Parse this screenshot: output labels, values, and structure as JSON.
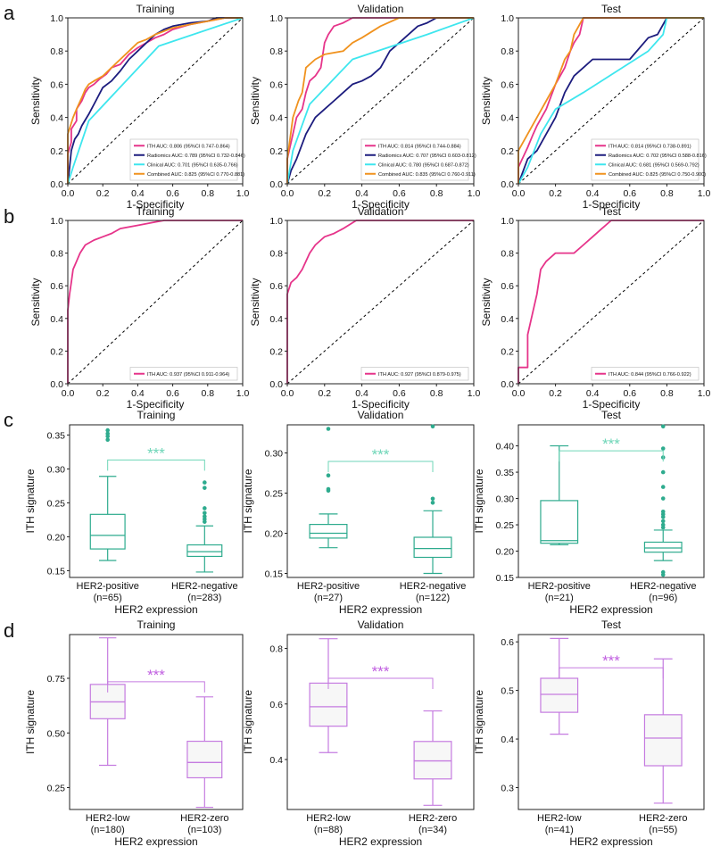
{
  "figure": {
    "panel_letters": [
      "a",
      "b",
      "c",
      "d"
    ],
    "roc_xlabel": "1-Specificity",
    "roc_ylabel": "Sensitivity",
    "box_xlabel": "HER2 expression",
    "box_ylabel": "ITH signature",
    "significance": "***"
  },
  "colors": {
    "ith": "#e6348a",
    "radiomics": "#1c1c7e",
    "clinical": "#3ee6ee",
    "combined": "#f0921e",
    "box_c": "#2eab8e",
    "box_c_star": "#6fd6b8",
    "box_d": "#c57be0",
    "box_d_star": "#c05ee0"
  },
  "chart_data": [
    {
      "id": "a1",
      "type": "line",
      "panel": "a",
      "title": "Training",
      "xlabel": "1-Specificity",
      "ylabel": "Sensitivity",
      "xlim": [
        0,
        1
      ],
      "ylim": [
        0,
        1
      ],
      "xticks": [
        "0.0",
        "0.2",
        "0.4",
        "0.6",
        "0.8",
        "1.0"
      ],
      "yticks": [
        "0.0",
        "0.2",
        "0.4",
        "0.6",
        "0.8",
        "1.0"
      ],
      "legend_position": "lower-right",
      "series": [
        {
          "name": "ITH AUC: 0.806 (95%CI 0.747-0.864)",
          "color": "#e6348a",
          "x": [
            0,
            0,
            0.02,
            0.02,
            0.05,
            0.05,
            0.08,
            0.1,
            0.12,
            0.15,
            0.18,
            0.22,
            0.25,
            0.3,
            0.35,
            0.4,
            0.45,
            0.5,
            0.55,
            0.6,
            0.7,
            0.8,
            0.9,
            1
          ],
          "y": [
            0,
            0.18,
            0.25,
            0.33,
            0.38,
            0.45,
            0.5,
            0.55,
            0.58,
            0.6,
            0.63,
            0.66,
            0.7,
            0.72,
            0.78,
            0.82,
            0.85,
            0.88,
            0.9,
            0.93,
            0.96,
            0.98,
            1,
            1
          ]
        },
        {
          "name": "Radiomics AUC: 0.789 (95%CI 0.732-0.846)",
          "color": "#1c1c7e",
          "x": [
            0,
            0.01,
            0.02,
            0.04,
            0.06,
            0.08,
            0.12,
            0.16,
            0.2,
            0.25,
            0.3,
            0.35,
            0.4,
            0.45,
            0.5,
            0.55,
            0.6,
            0.7,
            0.8,
            0.85,
            1
          ],
          "y": [
            0,
            0.1,
            0.2,
            0.27,
            0.3,
            0.35,
            0.42,
            0.5,
            0.58,
            0.62,
            0.68,
            0.75,
            0.8,
            0.85,
            0.9,
            0.93,
            0.95,
            0.97,
            0.98,
            1,
            1
          ]
        },
        {
          "name": "Clinical AUC: 0.701 (95%CI 0.635-0.766)",
          "color": "#3ee6ee",
          "x": [
            0,
            0.03,
            0.12,
            0.52,
            1
          ],
          "y": [
            0,
            0.1,
            0.38,
            0.83,
            1
          ]
        },
        {
          "name": "Combined AUC: 0.825 (95%CI 0.770-0.881)",
          "color": "#f0921e",
          "x": [
            0,
            0,
            0.03,
            0.05,
            0.08,
            0.1,
            0.12,
            0.15,
            0.2,
            0.25,
            0.3,
            0.35,
            0.4,
            0.45,
            0.5,
            0.55,
            0.6,
            0.7,
            0.8,
            0.9,
            1
          ],
          "y": [
            0,
            0.3,
            0.4,
            0.45,
            0.52,
            0.57,
            0.6,
            0.62,
            0.65,
            0.7,
            0.75,
            0.8,
            0.85,
            0.87,
            0.9,
            0.92,
            0.94,
            0.96,
            0.98,
            1,
            1
          ]
        }
      ]
    },
    {
      "id": "a2",
      "type": "line",
      "panel": "a",
      "title": "Validation",
      "xlabel": "1-Specificity",
      "ylabel": "Sensitivity",
      "xlim": [
        0,
        1
      ],
      "ylim": [
        0,
        1
      ],
      "xticks": [
        "0.0",
        "0.2",
        "0.4",
        "0.6",
        "0.8",
        "1.0"
      ],
      "yticks": [
        "0.0",
        "0.2",
        "0.4",
        "0.6",
        "0.8",
        "1.0"
      ],
      "legend_position": "lower-right",
      "series": [
        {
          "name": "ITH AUC: 0.814 (95%CI 0.744-0.884)",
          "color": "#e6348a",
          "x": [
            0,
            0,
            0.03,
            0.05,
            0.08,
            0.1,
            0.12,
            0.15,
            0.18,
            0.2,
            0.22,
            0.25,
            0.3,
            0.35,
            0.4,
            0.5,
            0.6,
            1
          ],
          "y": [
            0,
            0.15,
            0.3,
            0.4,
            0.45,
            0.55,
            0.62,
            0.65,
            0.7,
            0.85,
            0.9,
            0.95,
            0.97,
            1,
            1,
            1,
            1,
            1
          ]
        },
        {
          "name": "Radiomics AUC: 0.707 (95%CI 0.603-0.812)",
          "color": "#1c1c7e",
          "x": [
            0,
            0.02,
            0.05,
            0.1,
            0.15,
            0.2,
            0.25,
            0.3,
            0.35,
            0.4,
            0.45,
            0.5,
            0.55,
            0.6,
            0.65,
            0.7,
            0.75,
            0.8,
            1
          ],
          "y": [
            0,
            0.08,
            0.15,
            0.3,
            0.4,
            0.45,
            0.5,
            0.55,
            0.6,
            0.62,
            0.65,
            0.7,
            0.8,
            0.85,
            0.9,
            0.95,
            0.97,
            1,
            1
          ]
        },
        {
          "name": "Clinical AUC: 0.780 (95%CI 0.687-0.872)",
          "color": "#3ee6ee",
          "x": [
            0,
            0.03,
            0.12,
            0.35,
            0.75,
            1
          ],
          "y": [
            0,
            0.2,
            0.48,
            0.75,
            0.9,
            1
          ]
        },
        {
          "name": "Combined AUC: 0.835 (95%CI 0.760-0.911)",
          "color": "#f0921e",
          "x": [
            0,
            0,
            0.03,
            0.06,
            0.08,
            0.1,
            0.15,
            0.2,
            0.3,
            0.35,
            0.4,
            0.5,
            0.6,
            0.7,
            1
          ],
          "y": [
            0,
            0.15,
            0.4,
            0.5,
            0.55,
            0.7,
            0.75,
            0.78,
            0.8,
            0.85,
            0.88,
            0.95,
            1,
            1,
            1
          ]
        }
      ]
    },
    {
      "id": "a3",
      "type": "line",
      "panel": "a",
      "title": "Test",
      "xlabel": "1-Specificity",
      "ylabel": "Sensitivity",
      "xlim": [
        0,
        1
      ],
      "ylim": [
        0,
        1
      ],
      "xticks": [
        "0.0",
        "0.2",
        "0.4",
        "0.6",
        "0.8",
        "1.0"
      ],
      "yticks": [
        "0.0",
        "0.2",
        "0.4",
        "0.6",
        "0.8",
        "1.0"
      ],
      "legend_position": "lower-right",
      "series": [
        {
          "name": "ITH AUC: 0.814 (95%CI 0.738-0.891)",
          "color": "#e6348a",
          "x": [
            0,
            0,
            0.05,
            0.08,
            0.1,
            0.15,
            0.2,
            0.25,
            0.28,
            0.3,
            0.33,
            0.35,
            0.4,
            1
          ],
          "y": [
            0,
            0.1,
            0.22,
            0.3,
            0.35,
            0.45,
            0.6,
            0.7,
            0.8,
            0.85,
            0.9,
            1,
            1,
            1
          ]
        },
        {
          "name": "Radiomics AUC: 0.702 (95%CI 0.588-0.816)",
          "color": "#1c1c7e",
          "x": [
            0,
            0.05,
            0.1,
            0.15,
            0.2,
            0.25,
            0.3,
            0.35,
            0.4,
            0.5,
            0.6,
            0.7,
            0.75,
            0.8,
            1
          ],
          "y": [
            0,
            0.15,
            0.2,
            0.3,
            0.4,
            0.55,
            0.65,
            0.7,
            0.75,
            0.75,
            0.75,
            0.88,
            0.9,
            1,
            1
          ]
        },
        {
          "name": "Clinical AUC: 0.681 (95%CI 0.569-0.792)",
          "color": "#3ee6ee",
          "x": [
            0,
            0.05,
            0.12,
            0.2,
            0.35,
            0.7,
            0.78,
            0.8,
            1
          ],
          "y": [
            0,
            0.1,
            0.3,
            0.45,
            0.55,
            0.8,
            0.9,
            1,
            1
          ]
        },
        {
          "name": "Combined AUC: 0.825 (95%CI 0.750-0.900)",
          "color": "#f0921e",
          "x": [
            0,
            0,
            0.05,
            0.1,
            0.15,
            0.2,
            0.25,
            0.28,
            0.3,
            0.35,
            1
          ],
          "y": [
            0,
            0.2,
            0.3,
            0.4,
            0.5,
            0.6,
            0.75,
            0.8,
            0.9,
            1,
            1
          ]
        }
      ]
    },
    {
      "id": "b1",
      "type": "line",
      "panel": "b",
      "title": "Training",
      "xlabel": "1-Specificity",
      "ylabel": "Sensitivity",
      "xlim": [
        0,
        1
      ],
      "ylim": [
        0,
        1
      ],
      "xticks": [
        "0.0",
        "0.2",
        "0.4",
        "0.6",
        "0.8",
        "1.0"
      ],
      "yticks": [
        "0.0",
        "0.2",
        "0.4",
        "0.6",
        "0.8",
        "1.0"
      ],
      "legend_position": "lower-right",
      "series": [
        {
          "name": "ITH AUC: 0.937 (95%CI 0.911-0.964)",
          "color": "#e6348a",
          "x": [
            0,
            0,
            0.01,
            0.02,
            0.03,
            0.05,
            0.07,
            0.1,
            0.15,
            0.2,
            0.25,
            0.3,
            0.4,
            0.5,
            0.55,
            1
          ],
          "y": [
            0,
            0.45,
            0.55,
            0.62,
            0.7,
            0.75,
            0.8,
            0.85,
            0.88,
            0.9,
            0.92,
            0.95,
            0.97,
            0.99,
            1,
            1
          ]
        }
      ]
    },
    {
      "id": "b2",
      "type": "line",
      "panel": "b",
      "title": "Validation",
      "xlabel": "1-Specificity",
      "ylabel": "Sensitivity",
      "xlim": [
        0,
        1
      ],
      "ylim": [
        0,
        1
      ],
      "xticks": [
        "0.0",
        "0.2",
        "0.4",
        "0.6",
        "0.8",
        "1.0"
      ],
      "yticks": [
        "0.0",
        "0.2",
        "0.4",
        "0.6",
        "0.8",
        "1.0"
      ],
      "legend_position": "lower-right",
      "series": [
        {
          "name": "ITH AUC: 0.927 (95%CI 0.879-0.975)",
          "color": "#e6348a",
          "x": [
            0,
            0,
            0.02,
            0.05,
            0.08,
            0.1,
            0.12,
            0.15,
            0.18,
            0.2,
            0.25,
            0.3,
            0.37,
            1
          ],
          "y": [
            0,
            0.55,
            0.62,
            0.65,
            0.7,
            0.75,
            0.8,
            0.85,
            0.88,
            0.9,
            0.92,
            0.95,
            1,
            1
          ]
        }
      ]
    },
    {
      "id": "b3",
      "type": "line",
      "panel": "b",
      "title": "Test",
      "xlabel": "1-Specificity",
      "ylabel": "Sensitivity",
      "xlim": [
        0,
        1
      ],
      "ylim": [
        0,
        1
      ],
      "xticks": [
        "0.0",
        "0.2",
        "0.4",
        "0.6",
        "0.8",
        "1.0"
      ],
      "yticks": [
        "0.0",
        "0.2",
        "0.4",
        "0.6",
        "0.8",
        "1.0"
      ],
      "legend_position": "lower-right",
      "series": [
        {
          "name": "ITH AUC: 0.844 (95%CI 0.766-0.922)",
          "color": "#e6348a",
          "x": [
            0,
            0,
            0.05,
            0.05,
            0.1,
            0.12,
            0.15,
            0.2,
            0.25,
            0.3,
            0.35,
            0.4,
            0.45,
            0.5,
            1
          ],
          "y": [
            0,
            0.1,
            0.1,
            0.3,
            0.55,
            0.7,
            0.75,
            0.8,
            0.8,
            0.8,
            0.85,
            0.9,
            0.95,
            1,
            1
          ]
        }
      ]
    },
    {
      "id": "c1",
      "type": "box",
      "panel": "c",
      "title": "Training",
      "xlabel": "HER2 expression",
      "ylabel": "ITH signature",
      "ylim": [
        0.14,
        0.365
      ],
      "yticks": [
        0.15,
        0.2,
        0.25,
        0.3,
        0.35
      ],
      "groups": [
        {
          "label": "HER2-positive",
          "n": "(n=65)",
          "min": 0.165,
          "q1": 0.182,
          "median": 0.202,
          "q3": 0.233,
          "max": 0.289,
          "outliers": [
            0.343,
            0.348,
            0.352,
            0.357
          ]
        },
        {
          "label": "HER2-negative",
          "n": "(n=283)",
          "min": 0.148,
          "q1": 0.171,
          "median": 0.178,
          "q3": 0.188,
          "max": 0.216,
          "outliers": [
            0.222,
            0.226,
            0.23,
            0.235,
            0.242,
            0.272,
            0.28
          ]
        }
      ],
      "significance": "***"
    },
    {
      "id": "c2",
      "type": "box",
      "panel": "c",
      "title": "Validation",
      "xlabel": "HER2 expression",
      "ylabel": "ITH signature",
      "ylim": [
        0.145,
        0.335
      ],
      "yticks": [
        0.15,
        0.2,
        0.25,
        0.3
      ],
      "groups": [
        {
          "label": "HER2-positive",
          "n": "(n=27)",
          "min": 0.182,
          "q1": 0.194,
          "median": 0.2,
          "q3": 0.211,
          "max": 0.224,
          "outliers": [
            0.253,
            0.255,
            0.272,
            0.33
          ]
        },
        {
          "label": "HER2-negative",
          "n": "(n=122)",
          "min": 0.15,
          "q1": 0.17,
          "median": 0.181,
          "q3": 0.195,
          "max": 0.228,
          "outliers": [
            0.238,
            0.243,
            0.333
          ]
        }
      ],
      "significance": "***"
    },
    {
      "id": "c3",
      "type": "box",
      "panel": "c",
      "title": "Test",
      "xlabel": "HER2 expression",
      "ylabel": "ITH signature",
      "ylim": [
        0.15,
        0.44
      ],
      "yticks": [
        0.15,
        0.2,
        0.25,
        0.3,
        0.35,
        0.4
      ],
      "groups": [
        {
          "label": "HER2-positive",
          "n": "(n=21)",
          "min": 0.212,
          "q1": 0.215,
          "median": 0.22,
          "q3": 0.296,
          "max": 0.4,
          "outliers": []
        },
        {
          "label": "HER2-negative",
          "n": "(n=96)",
          "min": 0.182,
          "q1": 0.198,
          "median": 0.206,
          "q3": 0.217,
          "max": 0.24,
          "outliers": [
            0.155,
            0.16,
            0.245,
            0.25,
            0.257,
            0.265,
            0.27,
            0.275,
            0.3,
            0.322,
            0.35,
            0.378,
            0.395,
            0.437
          ]
        }
      ],
      "significance": "***"
    },
    {
      "id": "d1",
      "type": "box",
      "panel": "d",
      "title": "Training",
      "xlabel": "HER2 expression",
      "ylabel": "ITH signature",
      "ylim": [
        0.15,
        0.95
      ],
      "yticks": [
        0.25,
        0.5,
        0.75
      ],
      "groups": [
        {
          "label": "HER2-low",
          "n": "(n=180)",
          "min": 0.352,
          "q1": 0.565,
          "median": 0.642,
          "q3": 0.722,
          "max": 0.935,
          "outliers": []
        },
        {
          "label": "HER2-zero",
          "n": "(n=103)",
          "min": 0.16,
          "q1": 0.295,
          "median": 0.365,
          "q3": 0.462,
          "max": 0.665,
          "outliers": []
        }
      ],
      "significance": "***"
    },
    {
      "id": "d2",
      "type": "box",
      "panel": "d",
      "title": "Validation",
      "xlabel": "HER2 expression",
      "ylabel": "ITH signature",
      "ylim": [
        0.22,
        0.85
      ],
      "yticks": [
        0.4,
        0.6,
        0.8
      ],
      "groups": [
        {
          "label": "HER2-low",
          "n": "(n=88)",
          "min": 0.425,
          "q1": 0.52,
          "median": 0.59,
          "q3": 0.675,
          "max": 0.835,
          "outliers": []
        },
        {
          "label": "HER2-zero",
          "n": "(n=34)",
          "min": 0.235,
          "q1": 0.33,
          "median": 0.395,
          "q3": 0.465,
          "max": 0.575,
          "outliers": []
        }
      ],
      "significance": "***"
    },
    {
      "id": "d3",
      "type": "box",
      "panel": "d",
      "title": "Test",
      "xlabel": "HER2 expression",
      "ylabel": "ITH signature",
      "ylim": [
        0.255,
        0.615
      ],
      "yticks": [
        0.3,
        0.4,
        0.5,
        0.6
      ],
      "groups": [
        {
          "label": "HER2-low",
          "n": "(n=41)",
          "min": 0.41,
          "q1": 0.455,
          "median": 0.492,
          "q3": 0.525,
          "max": 0.607,
          "outliers": []
        },
        {
          "label": "HER2-zero",
          "n": "(n=55)",
          "min": 0.268,
          "q1": 0.345,
          "median": 0.402,
          "q3": 0.45,
          "max": 0.565,
          "outliers": []
        }
      ],
      "significance": "***"
    }
  ]
}
